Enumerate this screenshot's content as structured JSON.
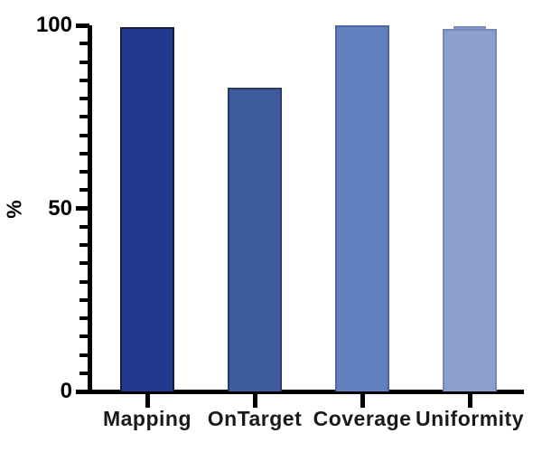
{
  "figure": {
    "background": "#ffffff",
    "axis_color": "#000000",
    "text_color": "#000000"
  },
  "chart_data": {
    "type": "bar",
    "title": "",
    "xlabel": "",
    "ylabel": "%",
    "ylim": [
      0,
      100
    ],
    "yticks_major": [
      0,
      50,
      100
    ],
    "ytick_major_labels": [
      "0",
      "50",
      "100"
    ],
    "ytick_minor_interval": 5,
    "grid": false,
    "legend": null,
    "categories": [
      "Mapping",
      "OnTarget",
      "Coverage",
      "Uniformity"
    ],
    "values": [
      99.5,
      83,
      100,
      99
    ],
    "bars": [
      {
        "label": "Mapping",
        "value": 99.5,
        "fill": "#21398F",
        "border": "#161C44"
      },
      {
        "label": "OnTarget",
        "value": 83,
        "fill": "#3E5C9D",
        "border": "#2A3B63"
      },
      {
        "label": "Coverage",
        "value": 100,
        "fill": "#6080C0",
        "border": "#4C639E"
      },
      {
        "label": "Uniformity",
        "value": 99,
        "fill": "#8CA0CE",
        "border": "#7188B8",
        "cap": {
          "value": 99.8,
          "width": 36,
          "color": "#8296C6",
          "border": "#6B81B2"
        }
      }
    ]
  }
}
